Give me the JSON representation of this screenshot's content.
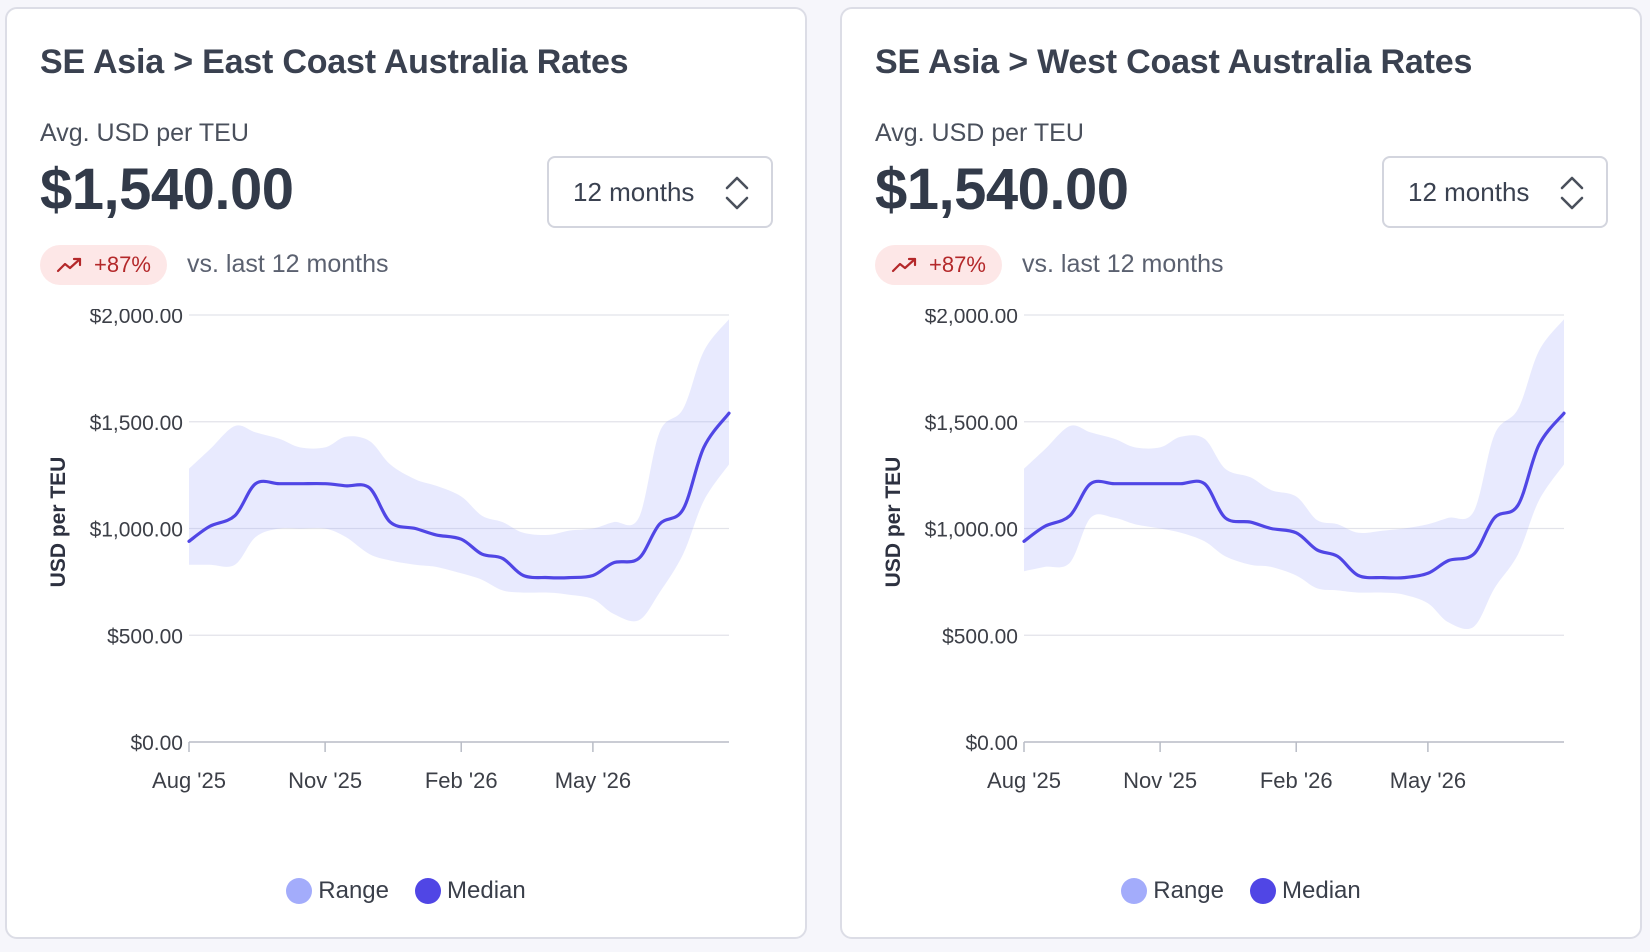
{
  "cards": [
    {
      "title": "SE Asia > East Coast Australia Rates",
      "metric_label": "Avg. USD per TEU",
      "metric_value": "$1,540.00",
      "period_select": "12 months",
      "change_badge": "+87%",
      "compare_text": "vs. last 12 months",
      "legend": [
        {
          "label": "Range",
          "color": "#a3acfb"
        },
        {
          "label": "Median",
          "color": "#5046e5"
        }
      ],
      "chart_data": {
        "type": "area",
        "title": "",
        "xlabel": "",
        "ylabel": "USD per TEU",
        "ylim": [
          0,
          2000
        ],
        "yticks": [
          0,
          500,
          1000,
          1500,
          2000
        ],
        "ytick_labels": [
          "$0.00",
          "$500.00",
          "$1,000.00",
          "$1,500.00",
          "$2,000.00"
        ],
        "xticks": [
          "Aug '25",
          "Nov '25",
          "Feb '26",
          "May '26"
        ],
        "grid": true,
        "legend_position": "bottom-center",
        "x": [
          "2025-08-01",
          "2025-08-15",
          "2025-09-01",
          "2025-09-15",
          "2025-10-01",
          "2025-10-15",
          "2025-11-01",
          "2025-11-15",
          "2025-12-01",
          "2025-12-15",
          "2026-01-01",
          "2026-01-15",
          "2026-02-01",
          "2026-02-15",
          "2026-03-01",
          "2026-03-15",
          "2026-04-01",
          "2026-04-15",
          "2026-05-01",
          "2026-05-15",
          "2026-06-01",
          "2026-06-15",
          "2026-07-01",
          "2026-07-15",
          "2026-08-01"
        ],
        "series": [
          {
            "name": "Median",
            "values": [
              940,
              1010,
              1060,
              1210,
              1210,
              1210,
              1210,
              1200,
              1190,
              1030,
              1000,
              970,
              950,
              880,
              860,
              780,
              770,
              770,
              780,
              840,
              860,
              1020,
              1090,
              1380,
              1540
            ]
          },
          {
            "name": "Range",
            "lower": [
              830,
              830,
              830,
              960,
              1000,
              1000,
              1000,
              960,
              880,
              850,
              830,
              820,
              790,
              760,
              710,
              700,
              700,
              690,
              670,
              600,
              570,
              700,
              880,
              1130,
              1300
            ],
            "upper": [
              1280,
              1370,
              1480,
              1450,
              1420,
              1380,
              1380,
              1430,
              1410,
              1300,
              1230,
              1200,
              1150,
              1060,
              1030,
              980,
              970,
              990,
              1000,
              1030,
              1050,
              1450,
              1560,
              1830,
              1980
            ]
          }
        ]
      }
    },
    {
      "title": "SE Asia > West Coast Australia Rates",
      "metric_label": "Avg. USD per TEU",
      "metric_value": "$1,540.00",
      "period_select": "12 months",
      "change_badge": "+87%",
      "compare_text": "vs. last 12 months",
      "legend": [
        {
          "label": "Range",
          "color": "#a3acfb"
        },
        {
          "label": "Median",
          "color": "#5046e5"
        }
      ],
      "chart_data": {
        "type": "area",
        "title": "",
        "xlabel": "",
        "ylabel": "USD per TEU",
        "ylim": [
          0,
          2000
        ],
        "yticks": [
          0,
          500,
          1000,
          1500,
          2000
        ],
        "ytick_labels": [
          "$0.00",
          "$500.00",
          "$1,000.00",
          "$1,500.00",
          "$2,000.00"
        ],
        "xticks": [
          "Aug '25",
          "Nov '25",
          "Feb '26",
          "May '26"
        ],
        "grid": true,
        "legend_position": "bottom-center",
        "x": [
          "2025-08-01",
          "2025-08-15",
          "2025-09-01",
          "2025-09-15",
          "2025-10-01",
          "2025-10-15",
          "2025-11-01",
          "2025-11-15",
          "2025-12-01",
          "2025-12-15",
          "2026-01-01",
          "2026-01-15",
          "2026-02-01",
          "2026-02-15",
          "2026-03-01",
          "2026-03-15",
          "2026-04-01",
          "2026-04-15",
          "2026-05-01",
          "2026-05-15",
          "2026-06-01",
          "2026-06-15",
          "2026-07-01",
          "2026-07-15",
          "2026-08-01"
        ],
        "series": [
          {
            "name": "Median",
            "values": [
              940,
              1010,
              1060,
              1210,
              1210,
              1210,
              1210,
              1210,
              1210,
              1050,
              1030,
              1000,
              980,
              900,
              870,
              780,
              770,
              770,
              790,
              850,
              880,
              1050,
              1110,
              1390,
              1540
            ]
          },
          {
            "name": "Range",
            "lower": [
              800,
              820,
              840,
              1050,
              1050,
              1020,
              1000,
              980,
              940,
              870,
              830,
              820,
              780,
              720,
              710,
              700,
              700,
              690,
              650,
              560,
              540,
              720,
              880,
              1130,
              1300
            ],
            "upper": [
              1280,
              1370,
              1480,
              1450,
              1420,
              1380,
              1380,
              1430,
              1420,
              1280,
              1240,
              1180,
              1150,
              1040,
              1020,
              980,
              990,
              1000,
              1020,
              1050,
              1080,
              1440,
              1560,
              1830,
              1980
            ]
          }
        ]
      }
    }
  ]
}
